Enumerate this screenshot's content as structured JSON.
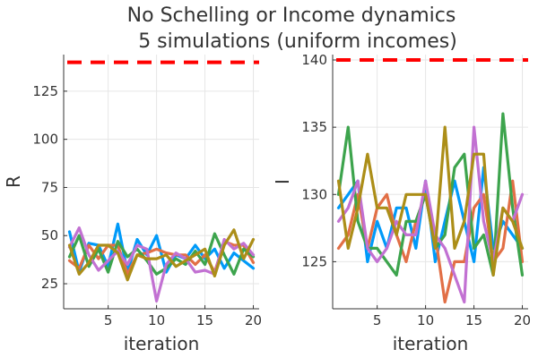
{
  "figure": {
    "title_line1": "No Schelling or Income dynamics",
    "title_line2": "5 simulations (uniform incomes)"
  },
  "chart_data": [
    {
      "type": "line",
      "ylabel": "R",
      "xlabel": "iteration",
      "xlim": [
        0.4,
        20.6
      ],
      "ylim": [
        12,
        144
      ],
      "xticks": [
        5,
        10,
        15,
        20
      ],
      "yticks": [
        25,
        50,
        75,
        100,
        125
      ],
      "grid": true,
      "x": [
        1,
        2,
        3,
        4,
        5,
        6,
        7,
        8,
        9,
        10,
        11,
        12,
        13,
        14,
        15,
        16,
        17,
        18,
        19,
        20
      ],
      "reference_line": {
        "y": 140,
        "color": "#ff0000",
        "style": "dashed"
      },
      "series": [
        {
          "color": "#009af9",
          "values": [
            52,
            31,
            46,
            45,
            34,
            56,
            31,
            48,
            40,
            50,
            31,
            40,
            38,
            45,
            38,
            43,
            33,
            41,
            37,
            33
          ]
        },
        {
          "color": "#e26f46",
          "values": [
            37,
            33,
            45,
            38,
            45,
            45,
            30,
            40,
            41,
            43,
            41,
            40,
            40,
            35,
            40,
            31,
            47,
            45,
            45,
            36
          ]
        },
        {
          "color": "#3da44d",
          "values": [
            39,
            50,
            34,
            43,
            31,
            47,
            39,
            43,
            37,
            30,
            33,
            38,
            35,
            42,
            35,
            51,
            40,
            30,
            43,
            39
          ]
        },
        {
          "color": "#c271d2",
          "values": [
            44,
            54,
            40,
            32,
            37,
            42,
            35,
            45,
            43,
            16,
            35,
            41,
            38,
            31,
            32,
            30,
            48,
            43,
            46,
            40
          ]
        },
        {
          "color": "#ac8e18",
          "values": [
            45,
            30,
            36,
            45,
            45,
            41,
            27,
            40,
            38,
            38,
            40,
            34,
            37,
            40,
            43,
            29,
            45,
            53,
            38,
            48
          ]
        }
      ]
    },
    {
      "type": "line",
      "ylabel": "I",
      "xlabel": "iteration",
      "xlim": [
        0.4,
        20.6
      ],
      "ylim": [
        121.5,
        140.4
      ],
      "xticks": [
        5,
        10,
        15,
        20
      ],
      "yticks": [
        125,
        130,
        135,
        140
      ],
      "grid": true,
      "x": [
        1,
        2,
        3,
        4,
        5,
        6,
        7,
        8,
        9,
        10,
        11,
        12,
        13,
        14,
        15,
        16,
        17,
        18,
        19,
        20
      ],
      "reference_line": {
        "y": 140,
        "color": "#ff0000",
        "style": "dashed"
      },
      "series": [
        {
          "color": "#009af9",
          "values": [
            129,
            130,
            131,
            125,
            128,
            126,
            129,
            129,
            126,
            131,
            125,
            128,
            131,
            128,
            125,
            132,
            126,
            128,
            127,
            126
          ]
        },
        {
          "color": "#e26f46",
          "values": [
            126,
            127,
            130,
            126,
            129,
            130,
            127,
            125,
            128,
            130,
            127,
            122,
            125,
            125,
            129,
            130,
            125,
            126,
            131,
            125
          ]
        },
        {
          "color": "#3da44d",
          "values": [
            130,
            135,
            128,
            126,
            126,
            125,
            124,
            128,
            128,
            130,
            126,
            127,
            132,
            133,
            126,
            127,
            124,
            136,
            129,
            124
          ]
        },
        {
          "color": "#c271d2",
          "values": [
            128,
            129,
            131,
            126,
            125,
            126,
            128,
            127,
            127,
            131,
            127,
            126,
            124,
            122,
            135,
            128,
            125,
            129,
            128,
            130
          ]
        },
        {
          "color": "#ac8e18",
          "values": [
            131,
            126,
            129,
            133,
            129,
            129,
            127,
            130,
            130,
            130,
            126,
            135,
            126,
            128,
            133,
            133,
            124,
            129,
            128,
            126
          ]
        }
      ]
    }
  ]
}
